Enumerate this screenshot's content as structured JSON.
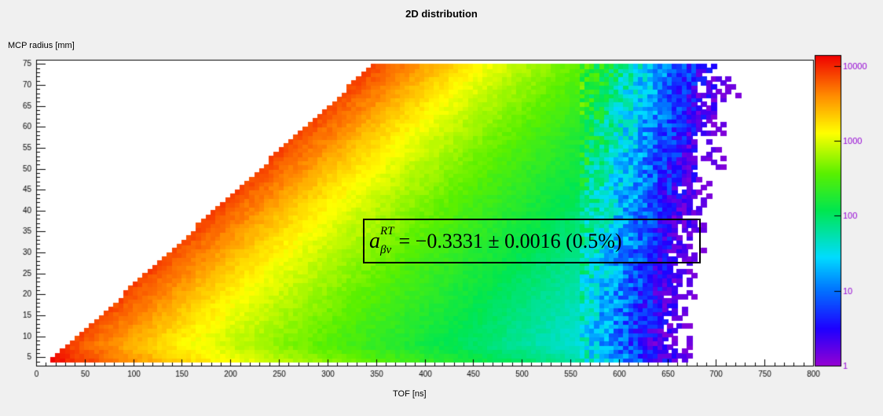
{
  "chart_data": {
    "type": "heatmap",
    "title": "2D distribution",
    "xlabel": "TOF [ns]",
    "ylabel": "MCP radius [mm]",
    "xlim": [
      0,
      800
    ],
    "ylim": [
      3,
      76
    ],
    "x_ticks": [
      "0",
      "50",
      "100",
      "150",
      "200",
      "250",
      "300",
      "350",
      "400",
      "450",
      "500",
      "550",
      "600",
      "650",
      "700",
      "750",
      "800"
    ],
    "y_ticks": [
      "5",
      "10",
      "15",
      "20",
      "25",
      "30",
      "35",
      "40",
      "45",
      "50",
      "55",
      "60",
      "65",
      "70",
      "75"
    ],
    "z_scale": "log",
    "z_range": [
      1,
      14000
    ],
    "colorbar_ticks": [
      "1",
      "10",
      "100",
      "1000",
      "10000"
    ],
    "kinematic_edge": {
      "x_start": 15,
      "y_start": 4,
      "x_end": 348,
      "y_end": 75
    },
    "annotation": {
      "symbol": "a",
      "superscript": "RT",
      "subscript": "βν",
      "expression": "= −0.3331 ± 0.0016    (0.5%)"
    }
  }
}
